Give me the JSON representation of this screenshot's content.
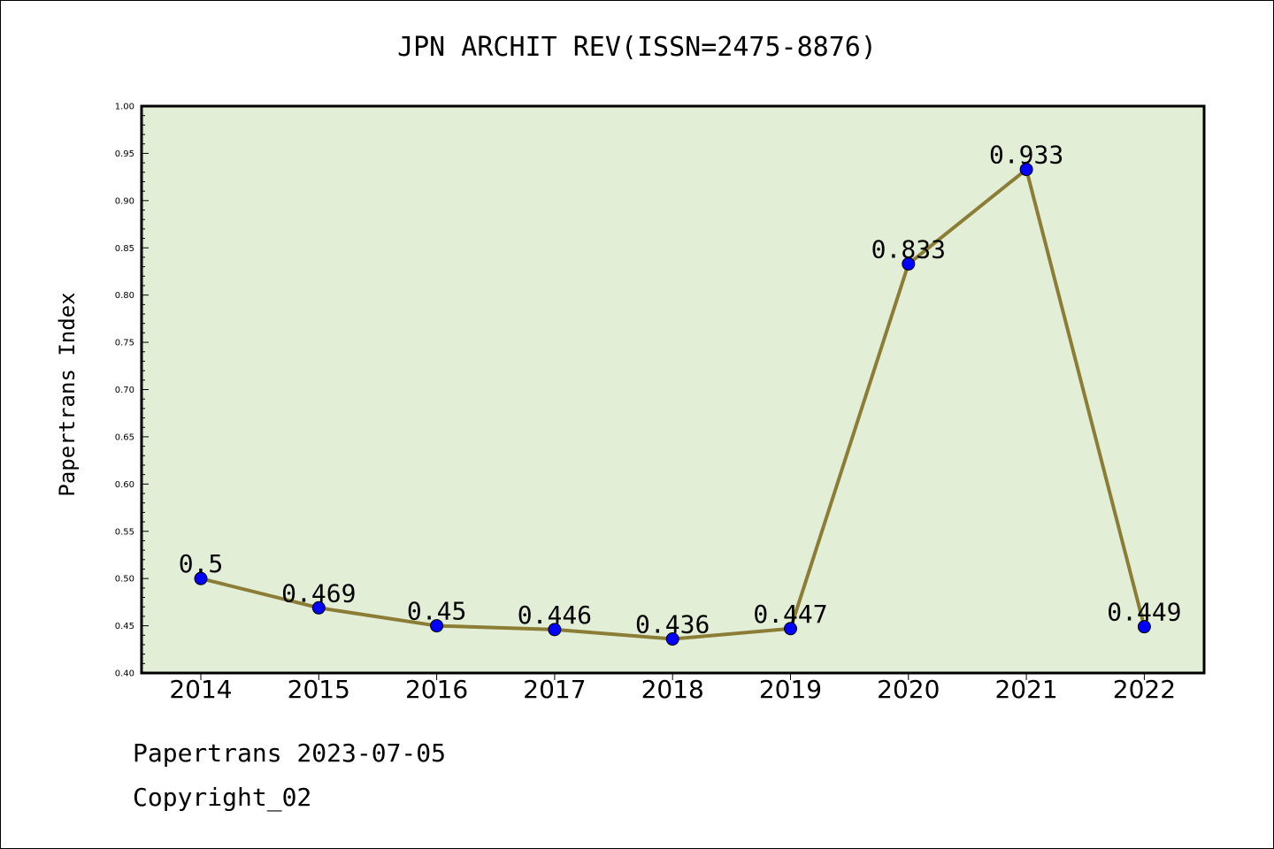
{
  "chart_data": {
    "type": "line",
    "title": "JPN ARCHIT REV(ISSN=2475-8876)",
    "xlabel": "",
    "ylabel": "Papertrans Index",
    "categories": [
      "2014",
      "2015",
      "2016",
      "2017",
      "2018",
      "2019",
      "2020",
      "2021",
      "2022"
    ],
    "series": [
      {
        "values": [
          0.5,
          0.469,
          0.45,
          0.446,
          0.436,
          0.447,
          0.833,
          0.933,
          0.449
        ],
        "data_labels": [
          "0.5",
          "0.469",
          "0.45",
          "0.446",
          "0.436",
          "0.447",
          "0.833",
          "0.933",
          "0.449"
        ],
        "line_color": "#8b7d35",
        "marker_color": "#0000ff"
      }
    ],
    "ylim": [
      0.4,
      1.0
    ],
    "yticks": [
      "0.40",
      "0.45",
      "0.50",
      "0.55",
      "0.60",
      "0.65",
      "0.70",
      "0.75",
      "0.80",
      "0.85",
      "0.90",
      "0.95",
      "1.00"
    ],
    "plot_background": "#e2efd6",
    "grid": false,
    "legend": "none"
  },
  "footer": {
    "line1": "Papertrans 2023-07-05",
    "line2": "Copyright_02"
  }
}
